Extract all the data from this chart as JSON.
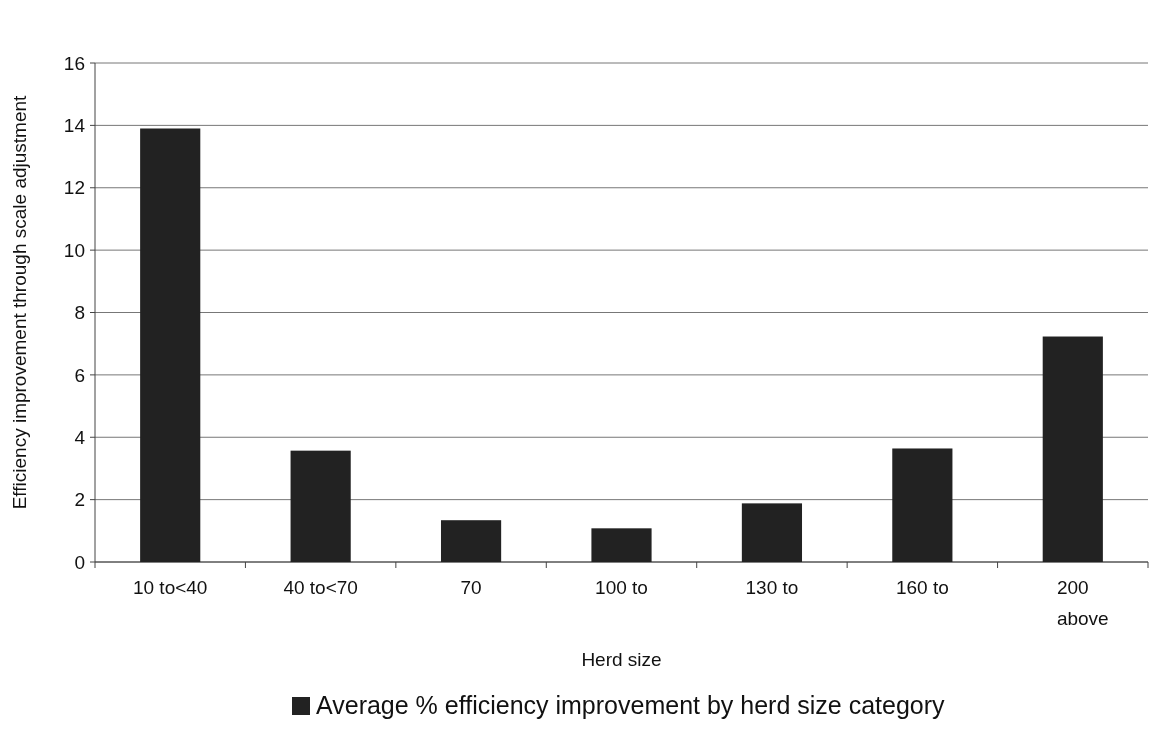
{
  "chart_data": {
    "type": "bar",
    "xlabel": "Herd size",
    "ylabel": "Efficiency improvement through scale adjustment",
    "categories": [
      "10 to<40",
      "40 to<70",
      "70",
      "100 to",
      "130 to",
      "160 to",
      "200\nabove"
    ],
    "series": [
      {
        "name": "Average % efficiency improvement by herd size category",
        "color": "#222222",
        "values": [
          13.9,
          3.57,
          1.34,
          1.08,
          1.88,
          3.64,
          7.23
        ]
      }
    ],
    "ylim": [
      0,
      16
    ],
    "yticks": [
      0,
      2,
      4,
      6,
      8,
      10,
      12,
      14,
      16
    ],
    "grid": "y",
    "legend": "bottom"
  }
}
